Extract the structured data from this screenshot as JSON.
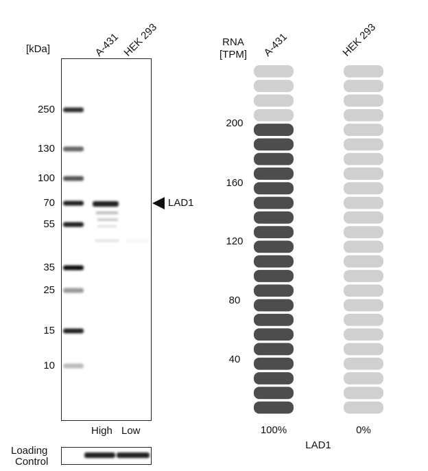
{
  "blot": {
    "unit": "[kDa]",
    "lanes": [
      "A-431",
      "HEK 293"
    ],
    "markers": [
      "250",
      "130",
      "100",
      "70",
      "55",
      "35",
      "25",
      "15",
      "10"
    ],
    "target": "LAD1",
    "levels": [
      "High",
      "Low"
    ],
    "loading_control": [
      "Loading",
      "Control"
    ]
  },
  "rna": {
    "axis_label": [
      "RNA",
      "[TPM]"
    ],
    "cell_lines": [
      "A-431",
      "HEK 293"
    ],
    "yticks": [
      "200",
      "160",
      "120",
      "80",
      "40"
    ],
    "segments": 24,
    "filled": [
      20,
      0
    ],
    "percent": [
      "100%",
      "0%"
    ],
    "gene": "LAD1"
  }
}
